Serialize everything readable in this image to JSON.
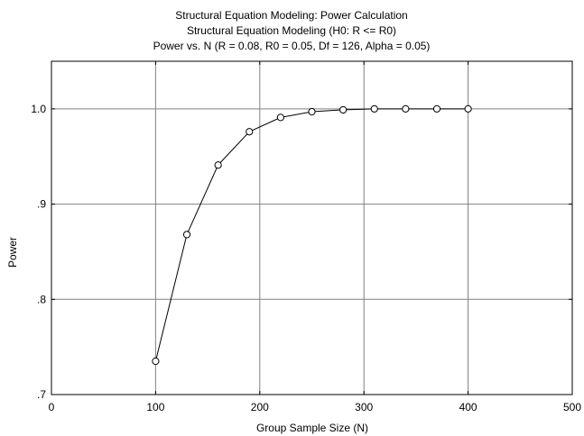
{
  "chart_data": {
    "type": "line",
    "title": "Structural Equation Modeling: Power Calculation",
    "subtitle": "Structural Equation Modeling (H0:  R <= R0)",
    "subtitle2": "Power vs. N (R = 0.08,  R0 = 0.05, Df = 126, Alpha = 0.05)",
    "xlabel": "Group Sample Size (N)",
    "ylabel": "Power",
    "xlim": [
      0,
      500
    ],
    "ylim": [
      0.7,
      1.05
    ],
    "x_ticks": [
      0,
      100,
      200,
      300,
      400,
      500
    ],
    "x_tick_labels": [
      "0",
      "100",
      "200",
      "300",
      "400",
      "500"
    ],
    "y_ticks": [
      0.7,
      0.8,
      0.9,
      1.0
    ],
    "y_tick_labels": [
      ".7",
      ".8",
      ".9",
      "1.0"
    ],
    "grid": true,
    "series": [
      {
        "x": [
          100,
          130,
          160,
          190,
          220,
          250,
          280,
          310,
          340,
          370,
          400
        ],
        "values": [
          0.735,
          0.868,
          0.941,
          0.976,
          0.991,
          0.997,
          0.999,
          1.0,
          1.0,
          1.0,
          1.0
        ]
      }
    ],
    "colors": {
      "line": "#000000",
      "marker_fill": "#ffffff",
      "grid": "#808080"
    }
  }
}
